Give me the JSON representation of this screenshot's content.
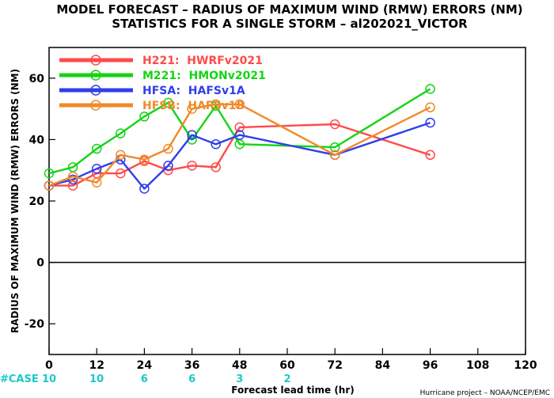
{
  "chart_data": {
    "type": "line",
    "title_line1": "MODEL FORECAST – RADIUS OF MAXIMUM WIND (RMW) ERRORS (NM)",
    "title_line2": "STATISTICS FOR A SINGLE STORM – al202021_VICTOR",
    "xlabel": "Forecast lead time (hr)",
    "ylabel": "RADIUS OF MAXIMUM WIND (RMW) ERRORS (NM)",
    "xlim": [
      0,
      120
    ],
    "ylim": [
      -30,
      70
    ],
    "xticks": [
      0,
      12,
      24,
      36,
      48,
      60,
      72,
      84,
      96,
      108,
      120
    ],
    "yticks": [
      -20,
      0,
      20,
      40,
      60
    ],
    "zero_line": true,
    "legend_position": "top-left",
    "case_label": "#CASE",
    "cases": [
      {
        "x": 0,
        "count": "10"
      },
      {
        "x": 12,
        "count": "10"
      },
      {
        "x": 24,
        "count": "6"
      },
      {
        "x": 36,
        "count": "6"
      },
      {
        "x": 48,
        "count": "3"
      },
      {
        "x": 60,
        "count": "2"
      }
    ],
    "series": [
      {
        "name": "H221:  HWRFv2021",
        "color": "#ff4a4a",
        "x": [
          0,
          6,
          12,
          18,
          24,
          30,
          36,
          42,
          48,
          72,
          96
        ],
        "y": [
          25,
          25,
          29,
          29,
          33,
          30,
          31.5,
          31,
          44,
          45,
          35
        ]
      },
      {
        "name": "M221:  HMONv2021",
        "color": "#14d414",
        "x": [
          0,
          6,
          12,
          18,
          24,
          30,
          36,
          42,
          48,
          72,
          96
        ],
        "y": [
          29,
          31,
          37,
          42,
          47.5,
          52,
          40,
          51,
          38.5,
          37.5,
          56.5
        ]
      },
      {
        "name": "HFSA:  HAFSv1A",
        "color": "#2f3fea",
        "x": [
          0,
          6,
          12,
          18,
          24,
          30,
          36,
          42,
          48,
          72,
          96
        ],
        "y": [
          25,
          27,
          30.5,
          33.5,
          24,
          31.5,
          41.5,
          38.5,
          41.5,
          35,
          45.5
        ]
      },
      {
        "name": "HFSB:  HAFSv1B",
        "color": "#f08a2a",
        "x": [
          0,
          6,
          12,
          18,
          24,
          30,
          36,
          42,
          48,
          72,
          96
        ],
        "y": [
          25,
          28,
          26,
          35,
          33.5,
          37,
          50,
          51.5,
          51.5,
          35,
          50.5
        ]
      }
    ]
  },
  "footer": {
    "credit": "Hurricane project – NOAA/NCEP/EMC"
  }
}
